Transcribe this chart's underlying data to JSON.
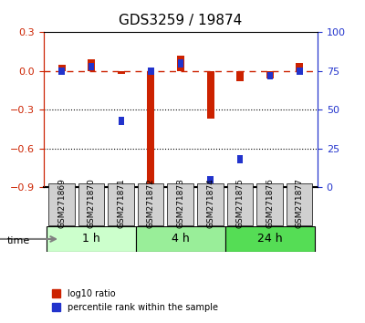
{
  "title": "GDS3259 / 19874",
  "samples": [
    "GSM271869",
    "GSM271870",
    "GSM271871",
    "GSM271872",
    "GSM271873",
    "GSM271874",
    "GSM271875",
    "GSM271876",
    "GSM271877"
  ],
  "log10_ratio": [
    0.05,
    0.09,
    -0.02,
    -0.88,
    0.12,
    -0.37,
    -0.08,
    -0.06,
    0.06
  ],
  "percentile_rank": [
    75,
    78,
    43,
    75,
    80,
    5,
    18,
    72,
    75
  ],
  "time_groups": [
    {
      "label": "1 h",
      "start": 0,
      "end": 3,
      "color": "#ccffcc"
    },
    {
      "label": "4 h",
      "start": 3,
      "end": 6,
      "color": "#99ee99"
    },
    {
      "label": "24 h",
      "start": 6,
      "end": 9,
      "color": "#55dd55"
    }
  ],
  "ylim_left": [
    -0.9,
    0.3
  ],
  "ylim_right": [
    0,
    100
  ],
  "yticks_left": [
    -0.9,
    -0.6,
    -0.3,
    0.0,
    0.3
  ],
  "yticks_right": [
    0,
    25,
    50,
    75,
    100
  ],
  "bar_color_red": "#cc2200",
  "bar_color_blue": "#2233cc",
  "legend_red_label": "log10 ratio",
  "legend_blue_label": "percentile rank within the sample",
  "hline_color": "#cc2200",
  "dotted_line_color": "#333333",
  "bg_color": "#f0f0f0",
  "bar_width": 0.35
}
